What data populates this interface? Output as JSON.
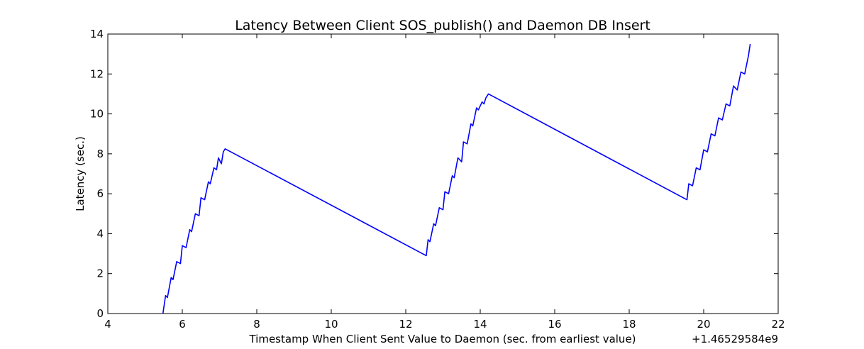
{
  "chart_data": {
    "type": "line",
    "title": "Latency Between Client SOS_publish() and Daemon DB Insert",
    "xlabel": "Timestamp When Client Sent Value to Daemon (sec. from earliest value)",
    "ylabel": "Latency (sec.)",
    "x_offset_label": "+1.46529584e9",
    "xlim": [
      4,
      22
    ],
    "ylim": [
      0,
      14
    ],
    "xticks": [
      4,
      6,
      8,
      10,
      12,
      14,
      16,
      18,
      20,
      22
    ],
    "yticks": [
      0,
      2,
      4,
      6,
      8,
      10,
      12,
      14
    ],
    "grid": false,
    "line_color": "#0000ff",
    "series": [
      {
        "x": [
          5.48,
          5.55,
          5.6,
          5.7,
          5.75,
          5.85,
          5.95,
          6.0,
          6.1,
          6.2,
          6.25,
          6.35,
          6.45,
          6.5,
          6.6,
          6.7,
          6.75,
          6.85,
          6.92,
          6.97,
          7.05,
          7.1,
          7.15,
          12.55,
          12.6,
          12.65,
          12.75,
          12.8,
          12.9,
          13.0,
          13.05,
          13.15,
          13.25,
          13.3,
          13.4,
          13.5,
          13.55,
          13.65,
          13.75,
          13.8,
          13.9,
          13.95,
          14.05,
          14.1,
          14.15,
          14.22,
          19.55,
          19.6,
          19.7,
          19.8,
          19.9,
          20.0,
          20.1,
          20.2,
          20.3,
          20.4,
          20.5,
          20.6,
          20.7,
          20.8,
          20.9,
          21.0,
          21.1,
          21.2,
          21.25
        ],
        "y": [
          0.0,
          0.9,
          0.8,
          1.8,
          1.7,
          2.6,
          2.5,
          3.4,
          3.3,
          4.2,
          4.1,
          5.0,
          4.9,
          5.8,
          5.7,
          6.6,
          6.5,
          7.3,
          7.2,
          7.8,
          7.5,
          8.1,
          8.25,
          2.9,
          3.7,
          3.6,
          4.5,
          4.4,
          5.3,
          5.2,
          6.1,
          6.0,
          6.9,
          6.8,
          7.8,
          7.6,
          8.6,
          8.5,
          9.5,
          9.4,
          10.3,
          10.2,
          10.6,
          10.5,
          10.8,
          11.0,
          5.7,
          6.5,
          6.4,
          7.3,
          7.2,
          8.2,
          8.1,
          9.0,
          8.9,
          9.8,
          9.7,
          10.5,
          10.4,
          11.4,
          11.2,
          12.1,
          12.0,
          12.9,
          13.5
        ]
      }
    ]
  }
}
